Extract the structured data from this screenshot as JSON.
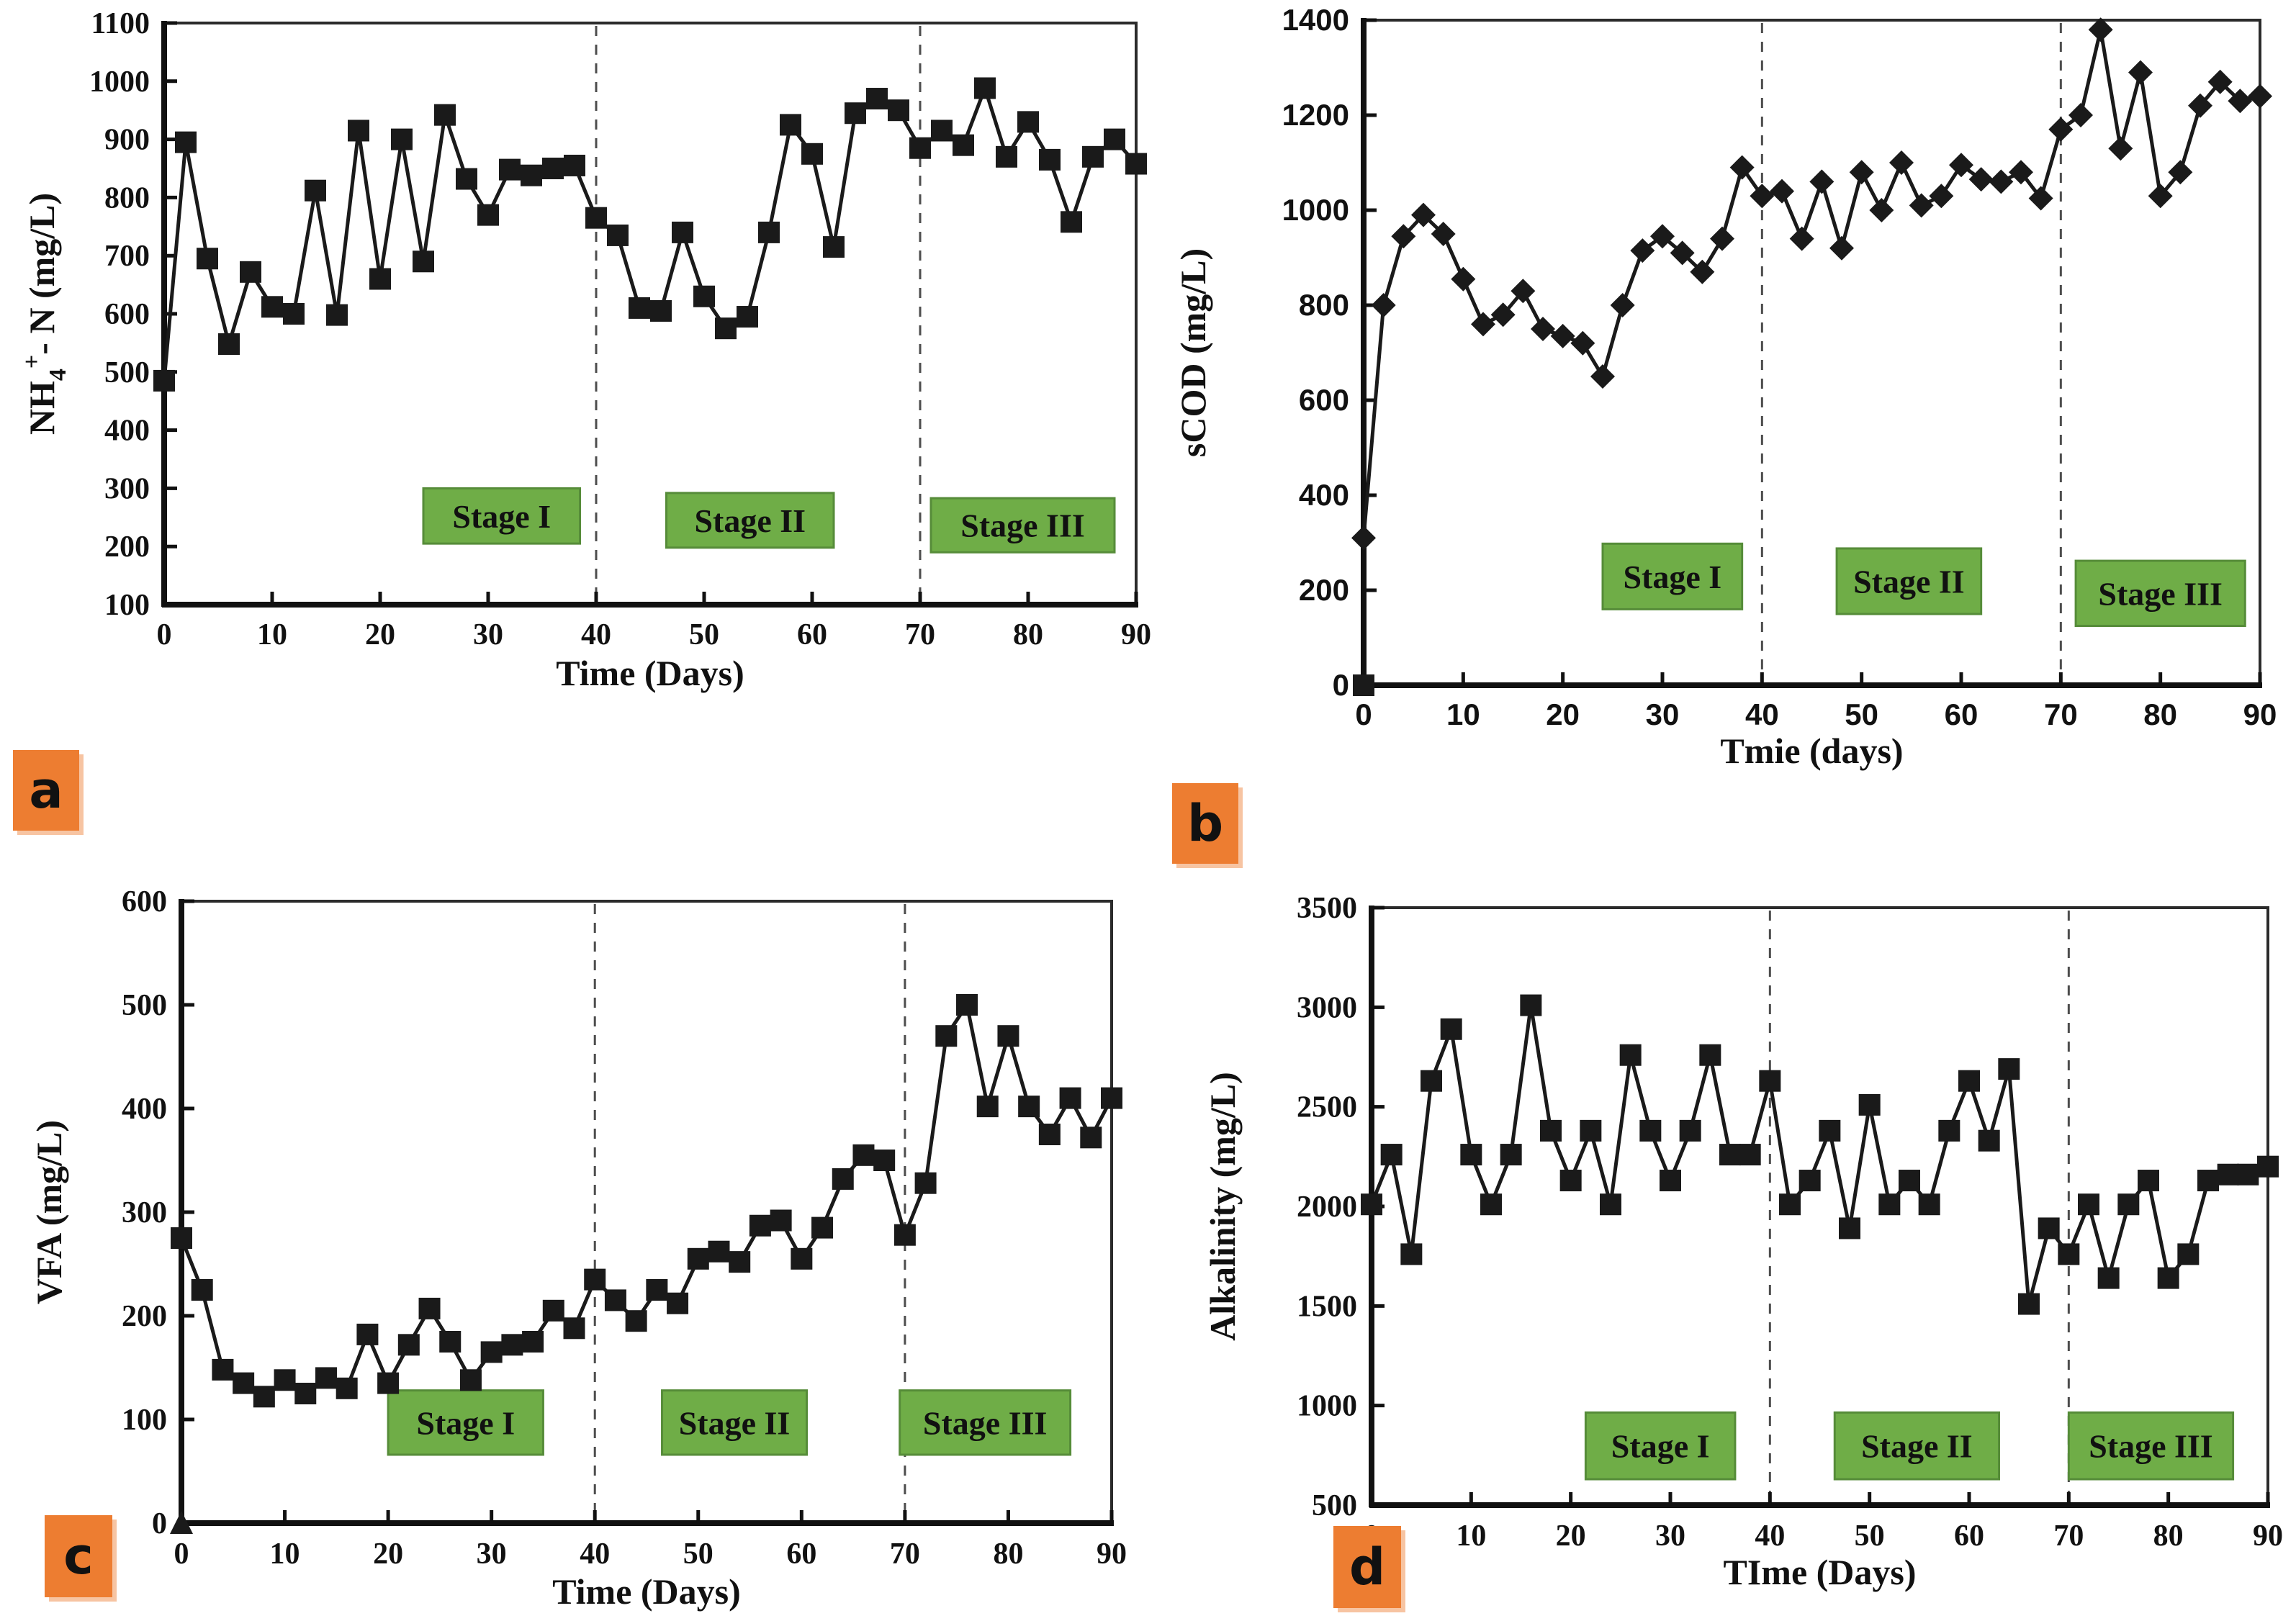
{
  "figure": {
    "background": "#ffffff"
  },
  "colors": {
    "series": "#1a1a1a",
    "stage_box_fill": "#6fad47",
    "stage_box_border": "#568c39",
    "dashed_line": "#4d4d4d",
    "panel_label_bg": "#ed7d31",
    "frame": "#2b2b2b"
  },
  "chart_data": [
    {
      "id": "a",
      "panel_label": "a",
      "type": "line",
      "marker": "square",
      "xlabel": "Time (Days)",
      "ylabel": "NH4+- N (mg/L)",
      "ylabel_parts": [
        {
          "text": "NH"
        },
        {
          "text": "4",
          "style": "sub"
        },
        {
          "text": "+",
          "style": "sup"
        },
        {
          "text": "- N (mg/L)"
        }
      ],
      "xlim": [
        0,
        90
      ],
      "xtick_step": 10,
      "ylim": [
        100,
        1100
      ],
      "ytick_step": 100,
      "grid": false,
      "legend": "none",
      "x": [
        0,
        2,
        4,
        6,
        8,
        10,
        12,
        14,
        16,
        18,
        20,
        22,
        24,
        26,
        28,
        30,
        32,
        34,
        36,
        38,
        40,
        42,
        44,
        46,
        48,
        50,
        52,
        54,
        56,
        58,
        60,
        62,
        64,
        66,
        68,
        70,
        72,
        74,
        76,
        78,
        80,
        82,
        84,
        86,
        88,
        90
      ],
      "values": [
        485,
        895,
        695,
        548,
        672,
        612,
        600,
        812,
        598,
        915,
        660,
        900,
        690,
        942,
        832,
        770,
        848,
        838,
        850,
        855,
        765,
        735,
        610,
        605,
        740,
        630,
        575,
        595,
        740,
        925,
        875,
        715,
        945,
        970,
        950,
        885,
        915,
        890,
        988,
        870,
        930,
        865,
        758,
        870,
        900,
        858
      ],
      "dashed_lines_x": [
        40,
        70
      ],
      "stage_boxes": [
        {
          "label": "Stage I",
          "x0": 24,
          "x1": 38.5,
          "y0": 205,
          "y1": 300
        },
        {
          "label": "Stage II",
          "x0": 46.5,
          "x1": 62,
          "y0": 198,
          "y1": 292
        },
        {
          "label": "Stage III",
          "x0": 71,
          "x1": 88,
          "y0": 190,
          "y1": 283
        }
      ],
      "extra_markers": []
    },
    {
      "id": "b",
      "panel_label": "b",
      "type": "line",
      "marker": "diamond",
      "xlabel": "Tmie (days)",
      "ylabel": "sCOD (mg/L)",
      "xlim": [
        0,
        90
      ],
      "xtick_step": 10,
      "ylim": [
        0,
        1400
      ],
      "ytick_step": 200,
      "grid": false,
      "legend": "none",
      "x": [
        0,
        2,
        4,
        6,
        8,
        10,
        12,
        14,
        16,
        18,
        20,
        22,
        24,
        26,
        28,
        30,
        32,
        34,
        36,
        38,
        40,
        42,
        44,
        46,
        48,
        50,
        52,
        54,
        56,
        58,
        60,
        62,
        64,
        66,
        68,
        70,
        72,
        74,
        76,
        78,
        80,
        82,
        84,
        86,
        88,
        90
      ],
      "values": [
        310,
        800,
        945,
        990,
        950,
        855,
        760,
        780,
        830,
        750,
        735,
        720,
        650,
        800,
        915,
        945,
        910,
        870,
        940,
        1090,
        1030,
        1040,
        940,
        1060,
        920,
        1080,
        1000,
        1100,
        1010,
        1030,
        1095,
        1065,
        1060,
        1080,
        1025,
        1170,
        1200,
        1380,
        1130,
        1290,
        1030,
        1080,
        1220,
        1270,
        1230,
        1240
      ],
      "dashed_lines_x": [
        40,
        70
      ],
      "stage_boxes": [
        {
          "label": "Stage I",
          "x0": 24,
          "x1": 38,
          "y0": 160,
          "y1": 298
        },
        {
          "label": "Stage II",
          "x0": 47.5,
          "x1": 62,
          "y0": 150,
          "y1": 288
        },
        {
          "label": "Stage III",
          "x0": 71.5,
          "x1": 88.5,
          "y0": 125,
          "y1": 262
        }
      ],
      "extra_markers": [
        {
          "x": 0,
          "y": 0,
          "shape": "square"
        }
      ]
    },
    {
      "id": "c",
      "panel_label": "c",
      "type": "line",
      "marker": "square",
      "xlabel": "Time (Days)",
      "ylabel": "VFA (mg/L)",
      "xlim": [
        0,
        90
      ],
      "xtick_step": 10,
      "ylim": [
        0,
        600
      ],
      "ytick_step": 100,
      "grid": false,
      "legend": "none",
      "x": [
        0,
        2,
        4,
        6,
        8,
        10,
        12,
        14,
        16,
        18,
        20,
        22,
        24,
        26,
        28,
        30,
        32,
        34,
        36,
        38,
        40,
        42,
        44,
        46,
        48,
        50,
        52,
        54,
        56,
        58,
        60,
        62,
        64,
        66,
        68,
        70,
        72,
        74,
        76,
        78,
        80,
        82,
        84,
        86,
        88,
        90
      ],
      "values": [
        275,
        225,
        148,
        135,
        122,
        138,
        125,
        140,
        130,
        182,
        135,
        172,
        207,
        175,
        138,
        165,
        172,
        175,
        205,
        188,
        235,
        215,
        195,
        225,
        212,
        255,
        262,
        252,
        287,
        292,
        255,
        285,
        332,
        355,
        350,
        278,
        328,
        470,
        500,
        402,
        470,
        402,
        375,
        410,
        372,
        410
      ],
      "dashed_lines_x": [
        40,
        70
      ],
      "stage_boxes": [
        {
          "label": "Stage I",
          "x0": 20,
          "x1": 35,
          "y0": 66,
          "y1": 128
        },
        {
          "label": "Stage II",
          "x0": 46.5,
          "x1": 60.5,
          "y0": 66,
          "y1": 128
        },
        {
          "label": "Stage III",
          "x0": 69.5,
          "x1": 86,
          "y0": 66,
          "y1": 128
        }
      ],
      "extra_markers": [
        {
          "x": 0,
          "y": 0,
          "shape": "triangle"
        }
      ]
    },
    {
      "id": "d",
      "panel_label": "d",
      "type": "line",
      "marker": "square",
      "xlabel": "TIme (Days)",
      "ylabel": "Alkalinity  (mg/L)",
      "xlim": [
        0,
        90
      ],
      "xtick_step": 10,
      "ylim": [
        500,
        3500
      ],
      "ytick_step": 500,
      "grid": false,
      "legend": "none",
      "x": [
        0,
        2,
        4,
        6,
        8,
        10,
        12,
        14,
        16,
        18,
        20,
        22,
        24,
        26,
        28,
        30,
        32,
        34,
        36,
        38,
        40,
        42,
        44,
        46,
        48,
        50,
        52,
        54,
        56,
        58,
        60,
        62,
        64,
        66,
        68,
        70,
        72,
        74,
        76,
        78,
        80,
        82,
        84,
        86,
        88,
        90
      ],
      "values": [
        2010,
        2260,
        1760,
        2630,
        2890,
        2260,
        2010,
        2260,
        3010,
        2380,
        2130,
        2380,
        2010,
        2760,
        2380,
        2130,
        2380,
        2760,
        2260,
        2260,
        2630,
        2010,
        2130,
        2380,
        1890,
        2510,
        2010,
        2130,
        2010,
        2380,
        2630,
        2330,
        2690,
        1510,
        1890,
        1760,
        2010,
        1640,
        2010,
        2130,
        1640,
        1760,
        2130,
        2160,
        2160,
        2200
      ],
      "dashed_lines_x": [
        40,
        70
      ],
      "stage_boxes": [
        {
          "label": "Stage I",
          "x0": 21.5,
          "x1": 36.5,
          "y0": 630,
          "y1": 965
        },
        {
          "label": "Stage II",
          "x0": 46.5,
          "x1": 63,
          "y0": 630,
          "y1": 965
        },
        {
          "label": "Stage III",
          "x0": 70,
          "x1": 86.5,
          "y0": 630,
          "y1": 965
        }
      ],
      "extra_markers": []
    }
  ]
}
